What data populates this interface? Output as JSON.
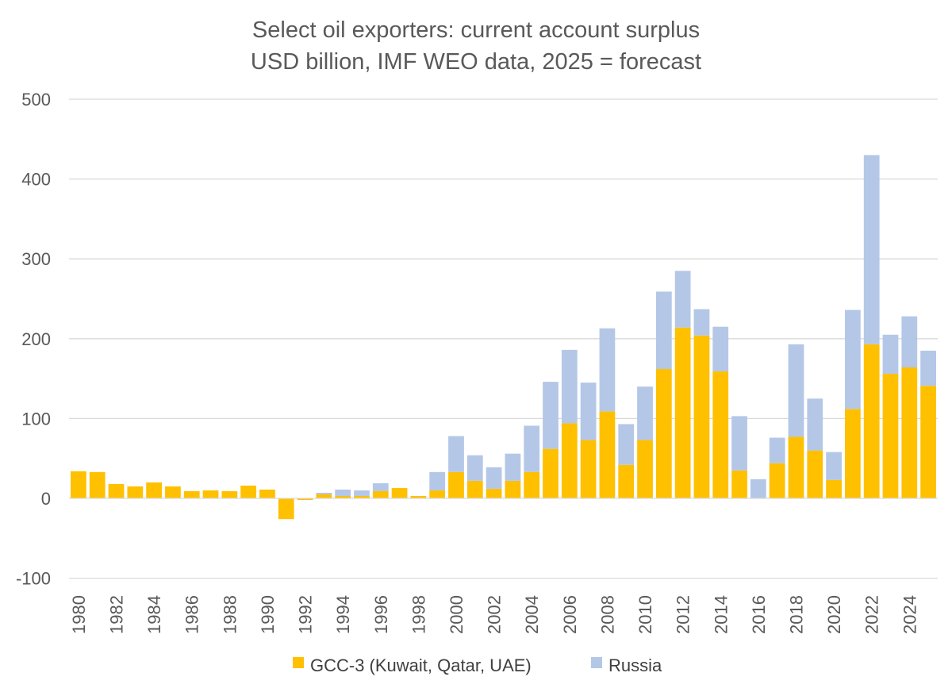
{
  "chart_data": {
    "type": "bar",
    "stacked": true,
    "title": "Select oil exporters: current account surplus",
    "subtitle": "USD billion, IMF WEO data, 2025 = forecast",
    "xlabel": "",
    "ylabel": "",
    "ylim": [
      -100,
      500
    ],
    "yticks": [
      -100,
      0,
      100,
      200,
      300,
      400,
      500
    ],
    "grid": true,
    "legend_position": "bottom",
    "categories": [
      "1980",
      "1981",
      "1982",
      "1983",
      "1984",
      "1985",
      "1986",
      "1987",
      "1988",
      "1989",
      "1990",
      "1991",
      "1992",
      "1993",
      "1994",
      "1995",
      "1996",
      "1997",
      "1998",
      "1999",
      "2000",
      "2001",
      "2002",
      "2003",
      "2004",
      "2005",
      "2006",
      "2007",
      "2008",
      "2009",
      "2010",
      "2011",
      "2012",
      "2013",
      "2014",
      "2015",
      "2016",
      "2017",
      "2018",
      "2019",
      "2020",
      "2021",
      "2022",
      "2023",
      "2024",
      "2025"
    ],
    "tick_labels": [
      "1980",
      "1982",
      "1984",
      "1986",
      "1988",
      "1990",
      "1992",
      "1994",
      "1996",
      "1998",
      "2000",
      "2002",
      "2004",
      "2006",
      "2008",
      "2010",
      "2012",
      "2014",
      "2016",
      "2018",
      "2020",
      "2022",
      "2024"
    ],
    "series": [
      {
        "name": "GCC-3 (Kuwait, Qatar, UAE)",
        "color": "#FFC000",
        "values": [
          34,
          33,
          18,
          15,
          20,
          15,
          9,
          10,
          9,
          16,
          11,
          -26,
          -2,
          5,
          3,
          3,
          9,
          13,
          3,
          10,
          33,
          22,
          12,
          22,
          33,
          62,
          94,
          73,
          109,
          42,
          73,
          162,
          214,
          204,
          159,
          35,
          0,
          44,
          77,
          60,
          23,
          112,
          193,
          156,
          164,
          141
        ]
      },
      {
        "name": "Russia",
        "color": "#B4C7E7",
        "values": [
          0,
          0,
          0,
          0,
          0,
          0,
          0,
          0,
          0,
          0,
          0,
          0,
          0,
          2,
          8,
          7,
          10,
          0,
          0,
          23,
          45,
          32,
          27,
          34,
          58,
          84,
          92,
          72,
          104,
          51,
          67,
          97,
          71,
          33,
          56,
          68,
          24,
          32,
          116,
          65,
          35,
          124,
          237,
          49,
          64,
          44
        ]
      }
    ]
  }
}
